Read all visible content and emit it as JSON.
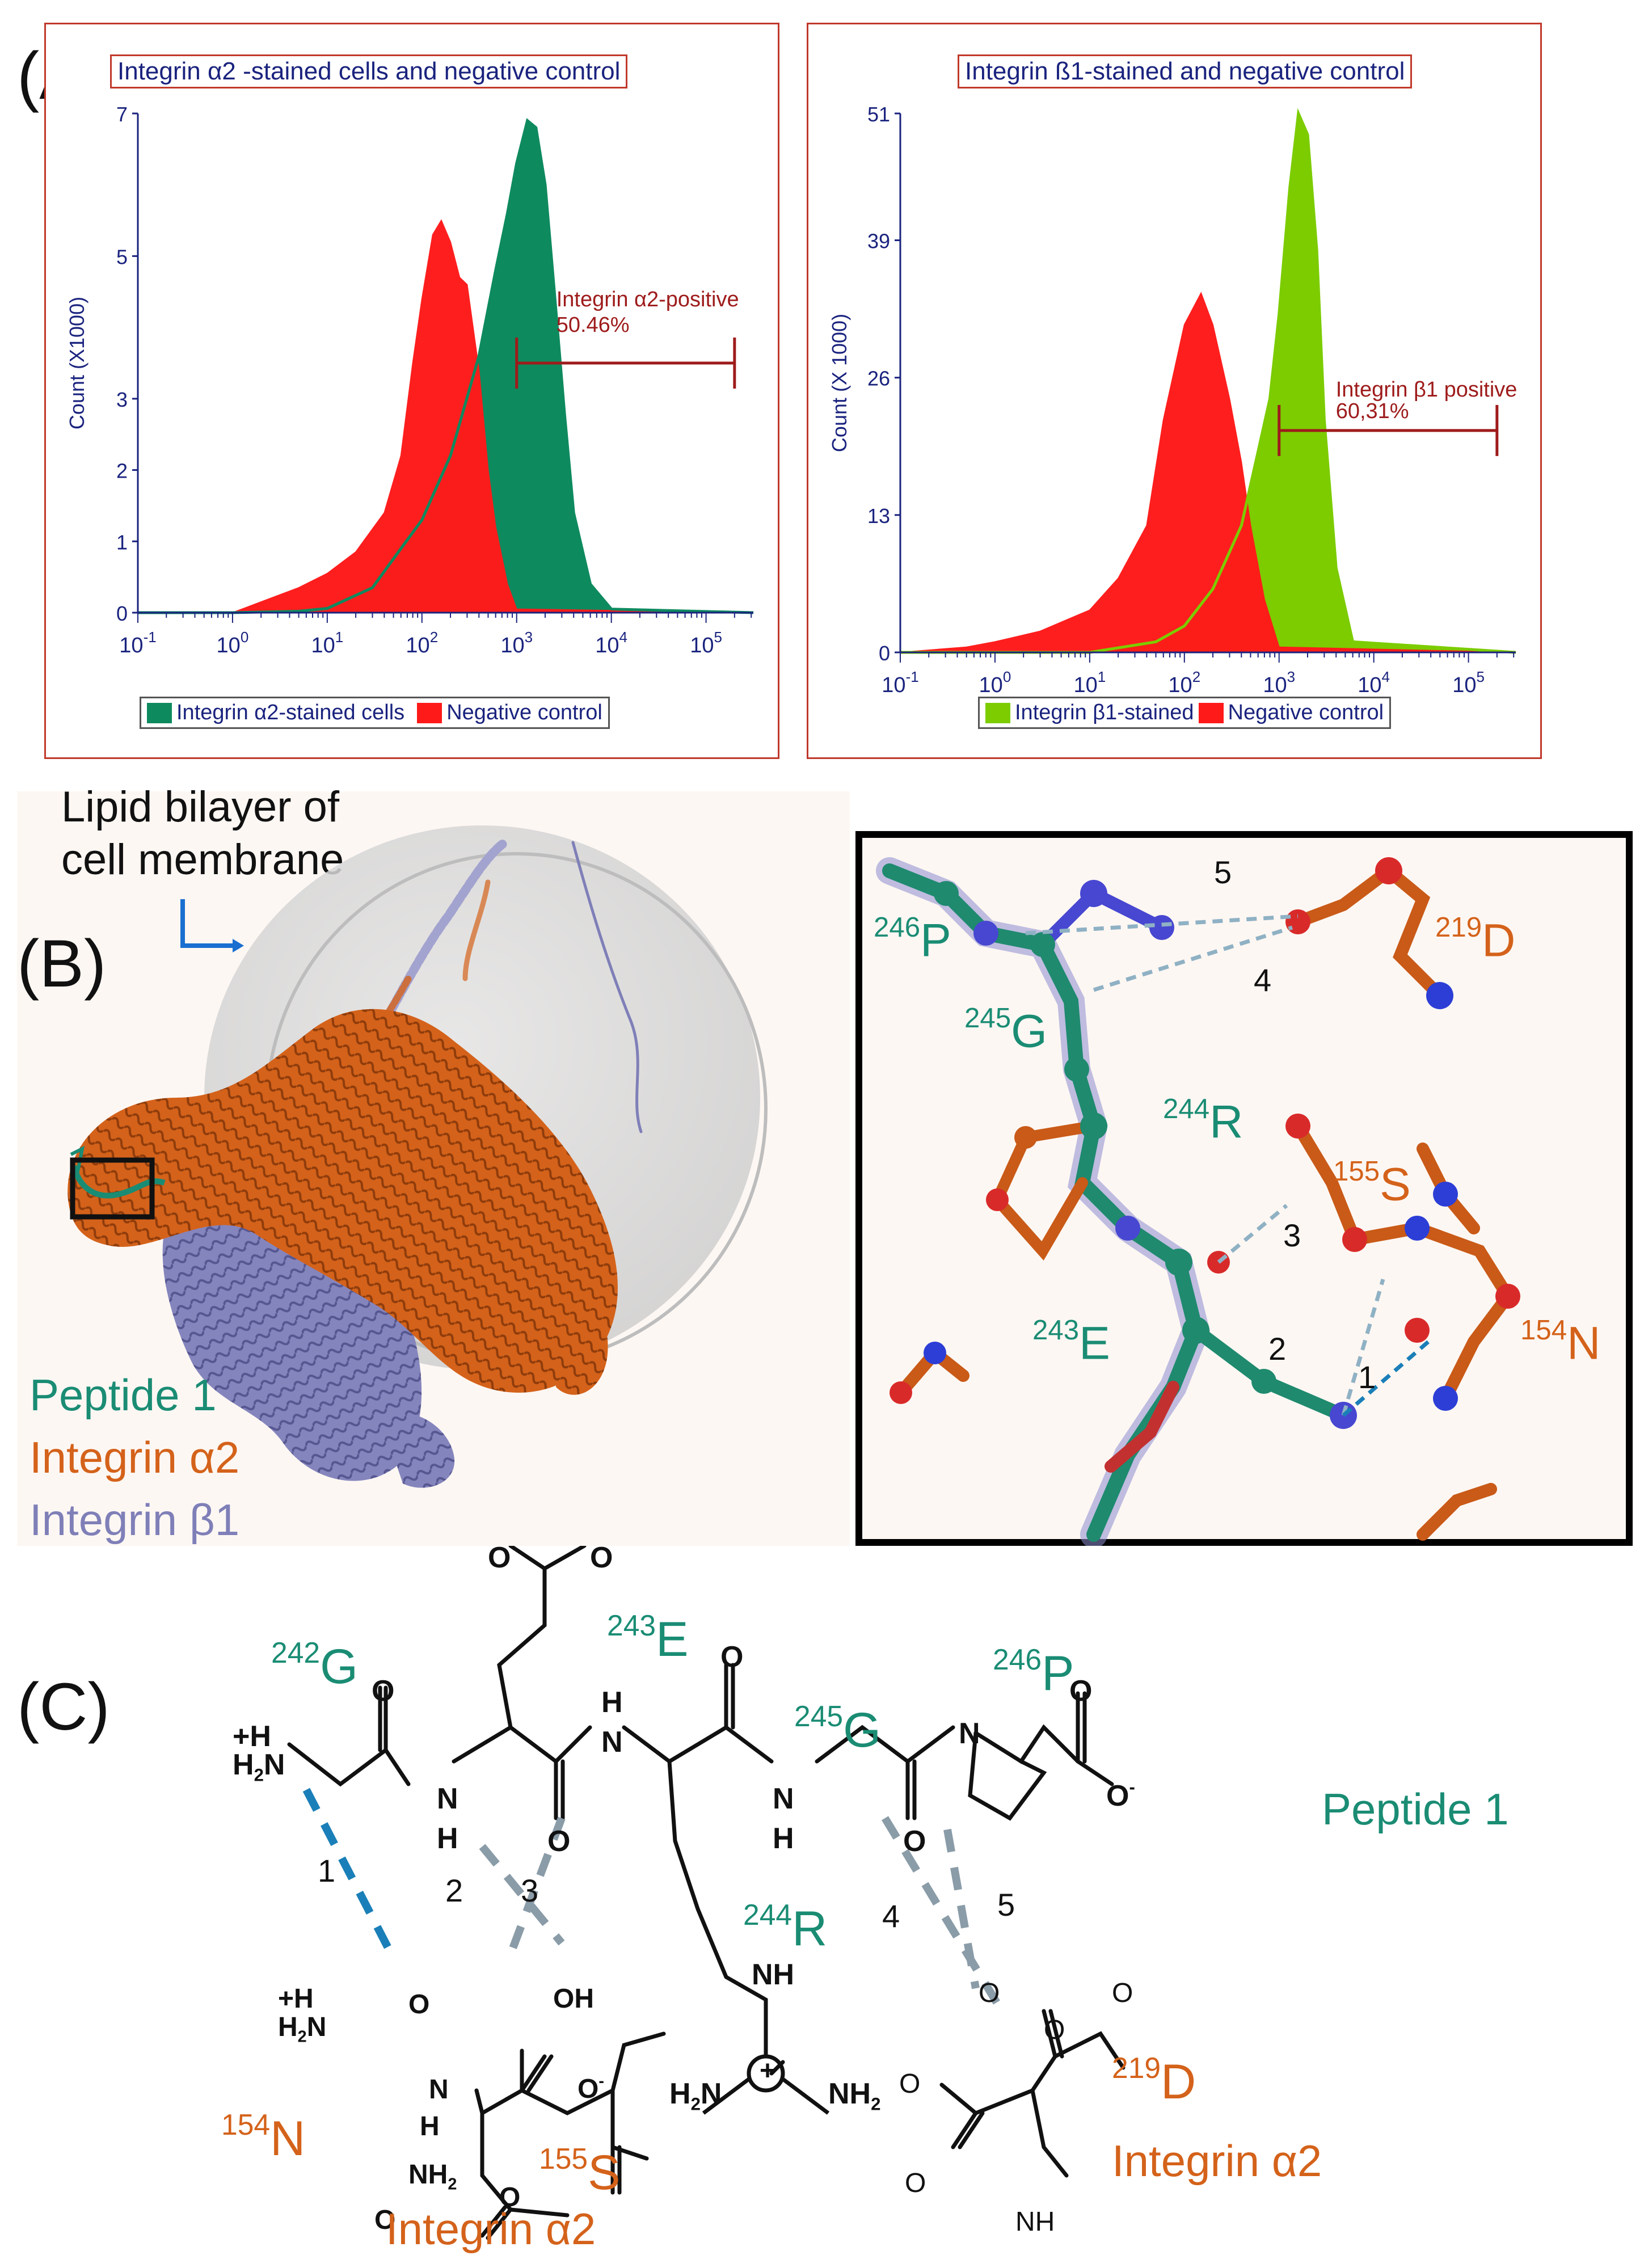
{
  "panels": {
    "a": "(A)",
    "b": "(B)",
    "c": "(C)"
  },
  "chart_data": [
    {
      "type": "area",
      "title": "Integrin α2 -stained cells and negative control",
      "ylabel": "Count (X1000)",
      "xlabel": "",
      "x_scale": "log",
      "xlim": [
        0.1,
        316000
      ],
      "ylim": [
        0,
        7
      ],
      "x_ticks": [
        {
          "value": 0.1,
          "base": "10",
          "exp": "-1"
        },
        {
          "value": 1,
          "base": "10",
          "exp": "0"
        },
        {
          "value": 10,
          "base": "10",
          "exp": "1"
        },
        {
          "value": 100,
          "base": "10",
          "exp": "2"
        },
        {
          "value": 1000,
          "base": "10",
          "exp": "3"
        },
        {
          "value": 10000,
          "base": "10",
          "exp": "4"
        },
        {
          "value": 100000,
          "base": "10",
          "exp": "5"
        }
      ],
      "y_ticks": [
        0,
        1,
        2,
        3,
        5,
        7
      ],
      "series": [
        {
          "name": "Integrin α2-stained cells",
          "color": "#0e8a5f",
          "x": [
            0.1,
            1,
            5,
            10,
            30,
            60,
            100,
            200,
            400,
            600,
            800,
            1000,
            1300,
            1600,
            2000,
            2500,
            3200,
            4000,
            6000,
            10000,
            316000
          ],
          "y": [
            0,
            0,
            0.02,
            0.06,
            0.35,
            0.9,
            1.3,
            2.2,
            3.6,
            4.8,
            5.6,
            6.3,
            6.9,
            6.8,
            6.0,
            4.5,
            2.8,
            1.4,
            0.4,
            0.05,
            0
          ]
        },
        {
          "name": "Negative control",
          "color": "#ff1a1a",
          "x": [
            0.1,
            1,
            2,
            5,
            10,
            20,
            40,
            60,
            80,
            100,
            130,
            160,
            200,
            250,
            300,
            400,
            500,
            600,
            800,
            1000,
            316000
          ],
          "y": [
            0,
            0,
            0.15,
            0.35,
            0.55,
            0.85,
            1.4,
            2.2,
            3.5,
            4.4,
            5.3,
            5.5,
            5.2,
            4.7,
            4.6,
            3.4,
            2.0,
            1.2,
            0.4,
            0.05,
            0
          ]
        }
      ],
      "gate": {
        "label": "Integrin α2-positive",
        "value": "50.46%",
        "x_start": 1000,
        "x_end": 200000,
        "y": 3.5
      },
      "legend": [
        "Integrin α2-stained cells",
        "Negative control"
      ]
    },
    {
      "type": "area",
      "title": "Integrin ß1-stained and negative control",
      "ylabel": "Count (X 1000)",
      "xlabel": "",
      "x_scale": "log",
      "xlim": [
        0.1,
        316000
      ],
      "ylim": [
        0,
        51
      ],
      "x_ticks": [
        {
          "value": 0.1,
          "base": "10",
          "exp": "-1"
        },
        {
          "value": 1,
          "base": "10",
          "exp": "0"
        },
        {
          "value": 10,
          "base": "10",
          "exp": "1"
        },
        {
          "value": 100,
          "base": "10",
          "exp": "2"
        },
        {
          "value": 1000,
          "base": "10",
          "exp": "3"
        },
        {
          "value": 10000,
          "base": "10",
          "exp": "4"
        },
        {
          "value": 100000,
          "base": "10",
          "exp": "5"
        }
      ],
      "y_ticks": [
        0,
        13,
        26,
        39,
        51
      ],
      "series": [
        {
          "name": "Integrin β1-stained",
          "color": "#7ccc00",
          "x": [
            0.1,
            10,
            50,
            100,
            200,
            400,
            600,
            800,
            1000,
            1300,
            1600,
            2000,
            2500,
            3000,
            4000,
            6000,
            316000
          ],
          "y": [
            0,
            0,
            1,
            2.5,
            6,
            12,
            19,
            24,
            32,
            44,
            51,
            49,
            38,
            22,
            8,
            1,
            0
          ]
        },
        {
          "name": "Negative control",
          "color": "#ff1a1a",
          "x": [
            0.1,
            0.5,
            1,
            3,
            10,
            20,
            40,
            60,
            100,
            150,
            200,
            300,
            400,
            500,
            700,
            1000,
            316000
          ],
          "y": [
            0,
            0.5,
            1,
            2,
            4,
            7,
            12,
            22,
            31,
            34,
            31,
            24,
            18,
            12,
            5,
            0.5,
            0
          ]
        }
      ],
      "gate": {
        "label": "Integrin β1 positive",
        "value": "60,31%",
        "x_start": 1000,
        "x_end": 200000,
        "y": 21
      },
      "legend": [
        "Integrin β1-stained",
        "Negative control"
      ]
    }
  ],
  "panel_b": {
    "membrane_label_1": "Lipid bilayer of",
    "membrane_label_2": "cell membrane",
    "legend": {
      "peptide": "Peptide 1",
      "alpha": "Integrin α2",
      "beta": "Integrin β1"
    },
    "colors": {
      "peptide": "#1a8c74",
      "alpha": "#d4621a",
      "beta": "#7f7fb8"
    },
    "inset": {
      "residues": [
        {
          "num": "246",
          "res": "P",
          "color": "peptide"
        },
        {
          "num": "245",
          "res": "G",
          "color": "peptide"
        },
        {
          "num": "244",
          "res": "R",
          "color": "peptide"
        },
        {
          "num": "243",
          "res": "E",
          "color": "peptide"
        },
        {
          "num": "219",
          "res": "D",
          "color": "alpha"
        },
        {
          "num": "155",
          "res": "S",
          "color": "alpha"
        },
        {
          "num": "154",
          "res": "N",
          "color": "alpha"
        }
      ],
      "bond_labels": [
        "1",
        "2",
        "3",
        "4",
        "5"
      ]
    }
  },
  "panel_c": {
    "peptide_label": "Peptide 1",
    "alpha_label": "Integrin α2",
    "residues": [
      {
        "num": "242",
        "res": "G"
      },
      {
        "num": "243",
        "res": "E"
      },
      {
        "num": "244",
        "res": "R"
      },
      {
        "num": "245",
        "res": "G"
      },
      {
        "num": "246",
        "res": "P"
      },
      {
        "num": "154",
        "res": "N"
      },
      {
        "num": "155",
        "res": "S"
      },
      {
        "num": "219",
        "res": "D"
      }
    ],
    "bond_labels": [
      "1",
      "2",
      "3",
      "4",
      "5"
    ],
    "atoms": {
      "O": "O",
      "N": "N",
      "H": "H",
      "OH": "OH",
      "NH": "NH",
      "NH2": "NH",
      "sub2": "2",
      "H2N": "H",
      "plus": "+",
      "minus": "-",
      "H3N": "N",
      "charge_dot": "•"
    }
  }
}
